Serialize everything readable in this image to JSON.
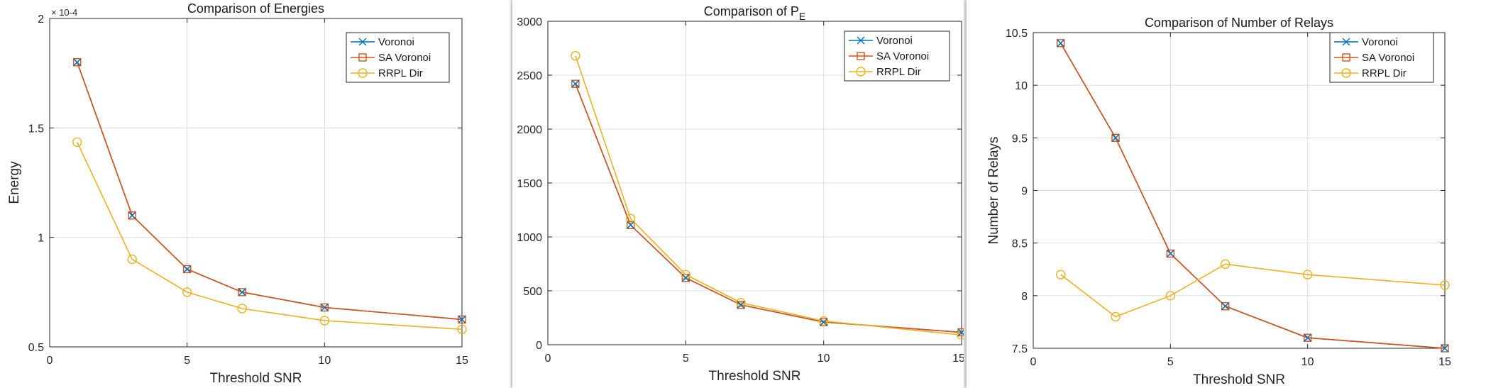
{
  "colors": {
    "voronoi": "#0072BD",
    "sa_voronoi": "#D95319",
    "rrpl_dir": "#EDB120",
    "grid": "#dcdcdc",
    "axis": "#262626"
  },
  "chart_data": [
    {
      "type": "line",
      "title": "Comparison of Energies",
      "xlabel": "Threshold SNR",
      "ylabel": "Energy",
      "exponent_label": "× 10^-4",
      "xlim": [
        0,
        15
      ],
      "ylim": [
        0.5,
        2
      ],
      "xticks": [
        0,
        5,
        10,
        15
      ],
      "yticks": [
        0.5,
        1,
        1.5,
        2
      ],
      "xtick_labels": [
        "0",
        "5",
        "10",
        "15"
      ],
      "ytick_labels": [
        "0.5",
        "1",
        "1.5",
        "2"
      ],
      "grid": true,
      "legend_position": "top-right",
      "x": [
        1,
        3,
        5,
        7,
        10,
        15
      ],
      "series": [
        {
          "name": "Voronoi",
          "marker": "x",
          "color": "#0072BD",
          "values": [
            1.8,
            1.1,
            0.855,
            0.75,
            0.68,
            0.625
          ]
        },
        {
          "name": "SA Voronoi",
          "marker": "square",
          "color": "#D95319",
          "values": [
            1.8,
            1.1,
            0.855,
            0.75,
            0.68,
            0.625
          ]
        },
        {
          "name": "RRPL Dir",
          "marker": "circle",
          "color": "#EDB120",
          "values": [
            1.435,
            0.9,
            0.75,
            0.675,
            0.62,
            0.58
          ]
        }
      ]
    },
    {
      "type": "line",
      "title": "Comparison of P",
      "title_subscript": "E",
      "xlabel": "Threshold SNR",
      "ylabel": "",
      "xlim": [
        0,
        15
      ],
      "ylim": [
        0,
        3000
      ],
      "xticks": [
        0,
        5,
        10,
        15
      ],
      "yticks": [
        0,
        500,
        1000,
        1500,
        2000,
        2500,
        3000
      ],
      "xtick_labels": [
        "0",
        "5",
        "10",
        "15"
      ],
      "ytick_labels": [
        "0",
        "500",
        "1000",
        "1500",
        "2000",
        "2500",
        "3000"
      ],
      "grid": true,
      "legend_position": "top-right",
      "x": [
        1,
        3,
        5,
        7,
        10,
        15
      ],
      "series": [
        {
          "name": "Voronoi",
          "marker": "x",
          "color": "#0072BD",
          "values": [
            2420,
            1110,
            620,
            370,
            210,
            115
          ]
        },
        {
          "name": "SA Voronoi",
          "marker": "square",
          "color": "#D95319",
          "values": [
            2420,
            1110,
            620,
            370,
            210,
            115
          ]
        },
        {
          "name": "RRPL Dir",
          "marker": "circle",
          "color": "#EDB120",
          "values": [
            2680,
            1170,
            650,
            390,
            220,
            90
          ]
        }
      ]
    },
    {
      "type": "line",
      "title": "Comparison of Number of Relays",
      "xlabel": "Threshold SNR",
      "ylabel": "Number of Relays",
      "xlim": [
        0,
        15
      ],
      "ylim": [
        7.5,
        10.5
      ],
      "xticks": [
        0,
        5,
        10,
        15
      ],
      "yticks": [
        7.5,
        8,
        8.5,
        9,
        9.5,
        10,
        10.5
      ],
      "xtick_labels": [
        "0",
        "5",
        "10",
        "15"
      ],
      "ytick_labels": [
        "7.5",
        "8",
        "8.5",
        "9",
        "9.5",
        "10",
        "10.5"
      ],
      "grid": true,
      "legend_position": "top-right",
      "x": [
        1,
        3,
        5,
        7,
        10,
        15
      ],
      "series": [
        {
          "name": "Voronoi",
          "marker": "x",
          "color": "#0072BD",
          "values": [
            10.4,
            9.5,
            8.4,
            7.9,
            7.6,
            7.5
          ]
        },
        {
          "name": "SA Voronoi",
          "marker": "square",
          "color": "#D95319",
          "values": [
            10.4,
            9.5,
            8.4,
            7.9,
            7.6,
            7.5
          ]
        },
        {
          "name": "RRPL Dir",
          "marker": "circle",
          "color": "#EDB120",
          "values": [
            8.2,
            7.8,
            8.0,
            8.3,
            8.2,
            8.1
          ]
        }
      ]
    }
  ]
}
